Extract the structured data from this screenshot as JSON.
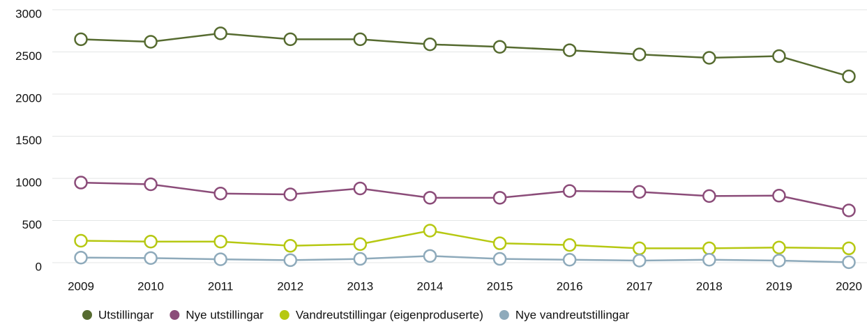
{
  "chart_data": {
    "type": "line",
    "categories": [
      "2009",
      "2010",
      "2011",
      "2012",
      "2013",
      "2014",
      "2015",
      "2016",
      "2017",
      "2018",
      "2019",
      "2020"
    ],
    "series": [
      {
        "name": "Utstillingar",
        "color": "#566b30",
        "values": [
          2650,
          2620,
          2720,
          2650,
          2650,
          2590,
          2560,
          2520,
          2470,
          2430,
          2450,
          2210
        ]
      },
      {
        "name": "Nye utstillingar",
        "color": "#8b4c79",
        "values": [
          950,
          930,
          820,
          810,
          880,
          770,
          770,
          850,
          840,
          790,
          795,
          620
        ]
      },
      {
        "name": "Vandreutstillingar (eigenproduserte)",
        "color": "#b6c812",
        "values": [
          260,
          250,
          250,
          200,
          220,
          380,
          230,
          210,
          170,
          170,
          180,
          170
        ]
      },
      {
        "name": "Nye vandreutstillingar",
        "color": "#8eaabb",
        "values": [
          60,
          55,
          40,
          30,
          45,
          80,
          45,
          35,
          25,
          35,
          25,
          5
        ]
      }
    ],
    "ylim": [
      0,
      3000
    ],
    "yticks": [
      0,
      500,
      1000,
      1500,
      2000,
      2500,
      3000
    ],
    "grid": true,
    "legend": "bottom"
  }
}
